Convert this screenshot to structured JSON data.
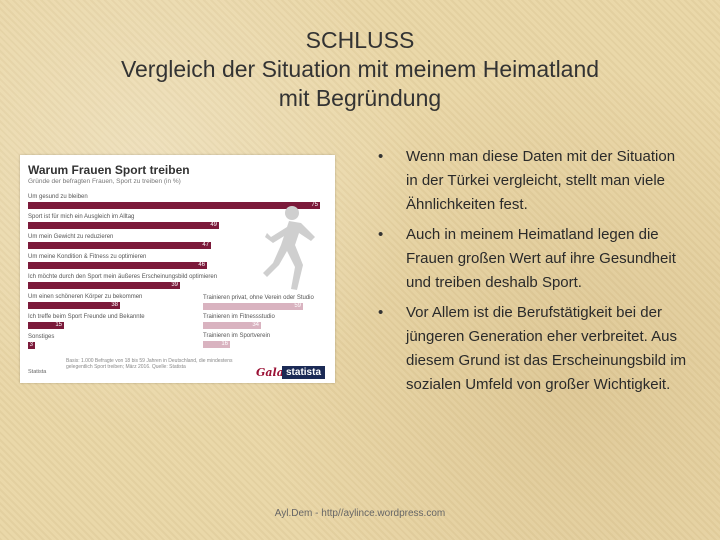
{
  "slide": {
    "title_line1": "SCHLUSS",
    "title_line2": "Vergleich der Situation mit meinem Heimatland",
    "title_line3": "mit Begründung",
    "footer": "Ayl.Dem - http//aylince.wordpress.com"
  },
  "infographic": {
    "title": "Warum Frauen Sport treiben",
    "subtitle": "Gründe der befragten Frauen, Sport zu treiben (in %)",
    "note": "Basis: 1.000 Befragte von 18 bis 59 Jahren in Deutschland, die mindestens gelegentlich Sport treiben; März 2016. Quelle: Statista",
    "badge": "Statista",
    "logo_gala": "Gala",
    "logo_statista": "statista",
    "bars": [
      {
        "label": "Um gesund zu bleiben",
        "value": 75
      },
      {
        "label": "Sport ist für mich ein Ausgleich im Alltag",
        "value": 49
      },
      {
        "label": "Um mein Gewicht zu reduzieren",
        "value": 47
      },
      {
        "label": "Um meine Kondition & Fitness zu optimieren",
        "value": 46
      },
      {
        "label": "Ich möchte durch den Sport mein äußeres Erscheinungsbild optimieren",
        "value": 39
      },
      {
        "label": "Um einen schöneren Körper zu bekommen",
        "value": 38
      },
      {
        "label": "Ich treffe beim Sport Freunde und Bekannte",
        "value": 15
      },
      {
        "label": "Sonstiges",
        "value": 3
      }
    ],
    "right_bars": [
      {
        "label": "Trainieren privat, ohne Verein oder Studio",
        "value": 59
      },
      {
        "label": "Trainieren im Fitnessstudio",
        "value": 34
      },
      {
        "label": "Trainieren im Sportverein",
        "value": 16
      }
    ]
  },
  "bullets": [
    "Wenn man diese Daten mit der Situation in der Türkei vergleicht, stellt man viele Ähnlichkeiten fest.",
    "Auch in meinem Heimatland legen die Frauen großen Wert auf ihre Gesundheit und treiben deshalb Sport.",
    "Vor Allem ist die Berufstätigkeit bei der jüngeren Generation eher verbreitet. Aus diesem Grund ist das Erscheinungsbild im sozialen Umfeld von großer Wichtigkeit."
  ],
  "colors": {
    "bar": "#7b1a3a",
    "bar_light": "#d9b3c0",
    "highlight": "#1c2a6b"
  }
}
